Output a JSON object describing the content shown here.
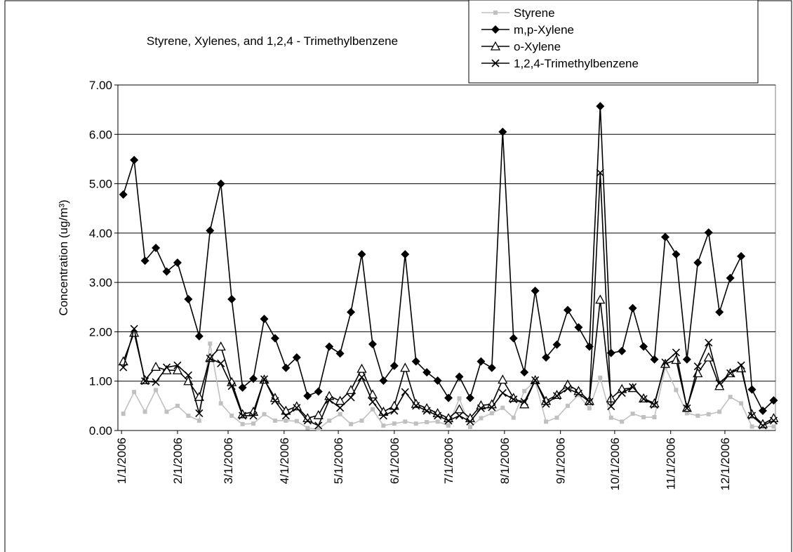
{
  "chart_data": {
    "type": "line",
    "title": "Styrene, Xylenes, and 1,2,4 - Trimethylbenzene",
    "y_label": "Concentration (ug/m³)",
    "x": [
      "2006-01-02",
      "2006-01-08",
      "2006-01-14",
      "2006-01-20",
      "2006-01-26",
      "2006-02-01",
      "2006-02-07",
      "2006-02-13",
      "2006-02-19",
      "2006-02-25",
      "2006-03-03",
      "2006-03-09",
      "2006-03-15",
      "2006-03-21",
      "2006-03-27",
      "2006-04-02",
      "2006-04-08",
      "2006-04-14",
      "2006-04-20",
      "2006-04-26",
      "2006-05-02",
      "2006-05-08",
      "2006-05-14",
      "2006-05-20",
      "2006-05-26",
      "2006-06-01",
      "2006-06-07",
      "2006-06-13",
      "2006-06-19",
      "2006-06-25",
      "2006-07-01",
      "2006-07-07",
      "2006-07-13",
      "2006-07-19",
      "2006-07-25",
      "2006-07-31",
      "2006-08-06",
      "2006-08-12",
      "2006-08-18",
      "2006-08-24",
      "2006-08-30",
      "2006-09-05",
      "2006-09-11",
      "2006-09-17",
      "2006-09-23",
      "2006-09-29",
      "2006-10-05",
      "2006-10-11",
      "2006-10-17",
      "2006-10-23",
      "2006-10-29",
      "2006-11-04",
      "2006-11-10",
      "2006-11-16",
      "2006-11-22",
      "2006-11-28",
      "2006-12-04",
      "2006-12-10",
      "2006-12-16",
      "2006-12-22",
      "2006-12-28"
    ],
    "xlim": [
      "2005-12-30",
      "2006-12-29"
    ],
    "xticks": [
      {
        "value": "2006-01-01",
        "label": "1/1/2006"
      },
      {
        "value": "2006-02-01",
        "label": "2/1/2006"
      },
      {
        "value": "2006-03-01",
        "label": "3/1/2006"
      },
      {
        "value": "2006-04-01",
        "label": "4/1/2006"
      },
      {
        "value": "2006-05-01",
        "label": "5/1/2006"
      },
      {
        "value": "2006-06-01",
        "label": "6/1/2006"
      },
      {
        "value": "2006-07-01",
        "label": "7/1/2006"
      },
      {
        "value": "2006-08-01",
        "label": "8/1/2006"
      },
      {
        "value": "2006-09-01",
        "label": "9/1/2006"
      },
      {
        "value": "2006-10-01",
        "label": "10/1/2006"
      },
      {
        "value": "2006-11-01",
        "label": "11/1/2006"
      },
      {
        "value": "2006-12-01",
        "label": "12/1/2006"
      }
    ],
    "ylim": [
      0,
      7
    ],
    "yticks": [
      {
        "value": 0,
        "label": "0.00"
      },
      {
        "value": 1,
        "label": "1.00"
      },
      {
        "value": 2,
        "label": "2.00"
      },
      {
        "value": 3,
        "label": "3.00"
      },
      {
        "value": 4,
        "label": "4.00"
      },
      {
        "value": 5,
        "label": "5.00"
      },
      {
        "value": 6,
        "label": "6.00"
      },
      {
        "value": 7,
        "label": "7.00"
      }
    ],
    "grid": true,
    "legend": "top-right",
    "series": [
      {
        "name": "Styrene",
        "color": "#c0c0c0",
        "marker": "square",
        "values": [
          0.34,
          0.78,
          0.38,
          0.82,
          0.38,
          0.5,
          0.3,
          0.2,
          1.76,
          0.55,
          0.3,
          0.13,
          0.14,
          0.33,
          0.2,
          0.2,
          0.19,
          0.05,
          0.03,
          0.2,
          0.33,
          0.13,
          0.2,
          0.43,
          0.1,
          0.14,
          0.18,
          0.14,
          0.17,
          0.18,
          0.1,
          0.65,
          0.07,
          0.25,
          0.35,
          0.46,
          0.26,
          0.8,
          1.0,
          0.18,
          0.26,
          0.5,
          0.72,
          0.45,
          1.07,
          0.26,
          0.18,
          0.34,
          0.27,
          0.27,
          1.28,
          0.82,
          0.35,
          0.3,
          0.33,
          0.38,
          0.68,
          0.55,
          0.08,
          0.08,
          0.08
        ]
      },
      {
        "name": "m,p-Xylene",
        "color": "#000000",
        "marker": "diamond",
        "values": [
          4.78,
          5.48,
          3.44,
          3.7,
          3.22,
          3.4,
          2.66,
          1.91,
          4.05,
          5.0,
          2.66,
          0.87,
          1.05,
          2.26,
          1.87,
          1.27,
          1.48,
          0.7,
          0.79,
          1.7,
          1.56,
          2.4,
          3.57,
          1.75,
          1.01,
          1.31,
          3.57,
          1.4,
          1.18,
          1.01,
          0.66,
          1.09,
          0.66,
          1.4,
          1.27,
          6.05,
          1.87,
          1.18,
          2.83,
          1.48,
          1.74,
          2.44,
          2.09,
          1.7,
          6.57,
          1.57,
          1.61,
          2.48,
          1.7,
          1.44,
          3.92,
          3.57,
          1.44,
          3.4,
          4.01,
          2.4,
          3.09,
          3.53,
          0.83,
          0.4,
          0.61
        ]
      },
      {
        "name": "o-Xylene",
        "color": "#000000",
        "marker": "triangle",
        "values": [
          1.4,
          1.98,
          1.02,
          1.29,
          1.22,
          1.22,
          1.0,
          0.68,
          1.47,
          1.7,
          0.98,
          0.33,
          0.38,
          1.03,
          0.66,
          0.4,
          0.49,
          0.25,
          0.31,
          0.7,
          0.6,
          0.82,
          1.25,
          0.73,
          0.38,
          0.5,
          1.27,
          0.54,
          0.45,
          0.35,
          0.25,
          0.43,
          0.25,
          0.51,
          0.53,
          1.03,
          0.66,
          0.53,
          1.02,
          0.6,
          0.72,
          0.93,
          0.8,
          0.6,
          2.65,
          0.65,
          0.84,
          0.86,
          0.65,
          0.55,
          1.35,
          1.43,
          0.46,
          1.16,
          1.48,
          0.9,
          1.16,
          1.26,
          0.33,
          0.13,
          0.25
        ]
      },
      {
        "name": "1,2,4-Trimethylbenzene",
        "color": "#000000",
        "marker": "x",
        "values": [
          1.28,
          2.06,
          1.0,
          0.98,
          1.28,
          1.32,
          1.12,
          0.35,
          1.46,
          1.36,
          0.9,
          0.3,
          0.3,
          1.04,
          0.6,
          0.3,
          0.46,
          0.2,
          0.1,
          0.62,
          0.46,
          0.67,
          1.08,
          0.58,
          0.3,
          0.4,
          0.78,
          0.5,
          0.4,
          0.3,
          0.2,
          0.3,
          0.18,
          0.45,
          0.47,
          0.76,
          0.63,
          0.58,
          1.02,
          0.54,
          0.7,
          0.85,
          0.75,
          0.58,
          5.22,
          0.49,
          0.76,
          0.88,
          0.64,
          0.52,
          1.38,
          1.58,
          0.45,
          1.3,
          1.78,
          0.96,
          1.16,
          1.32,
          0.3,
          0.1,
          0.2
        ]
      }
    ]
  }
}
